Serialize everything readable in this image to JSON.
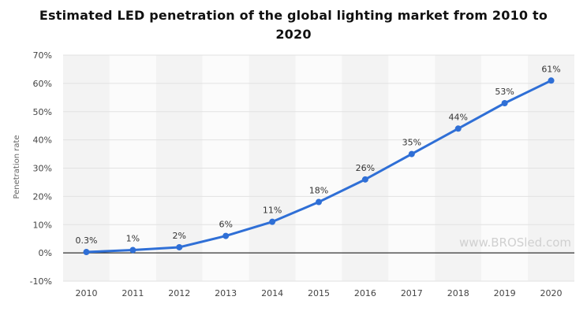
{
  "chart_data": {
    "type": "line",
    "title_line1": "Estimated LED penetration of the global lighting market from 2010 to",
    "title_line2": "2020",
    "ylabel": "Penetration rate",
    "xlabel": "",
    "categories": [
      "2010",
      "2011",
      "2012",
      "2013",
      "2014",
      "2015",
      "2016",
      "2017",
      "2018",
      "2019",
      "2020"
    ],
    "values": [
      0.3,
      1,
      2,
      6,
      11,
      18,
      26,
      35,
      44,
      53,
      61
    ],
    "data_labels": [
      "0.3%",
      "1%",
      "2%",
      "6%",
      "11%",
      "18%",
      "26%",
      "35%",
      "44%",
      "53%",
      "61%"
    ],
    "ylim": [
      -10,
      70
    ],
    "yticks": [
      70,
      60,
      50,
      40,
      30,
      20,
      10,
      0,
      -10
    ],
    "ytick_labels": [
      "70%",
      "60%",
      "50%",
      "40%",
      "30%",
      "20%",
      "10%",
      "0%",
      "-10%"
    ],
    "line_color": "#2f6fd6",
    "grid": true,
    "watermark": "www.BROSled.com"
  }
}
